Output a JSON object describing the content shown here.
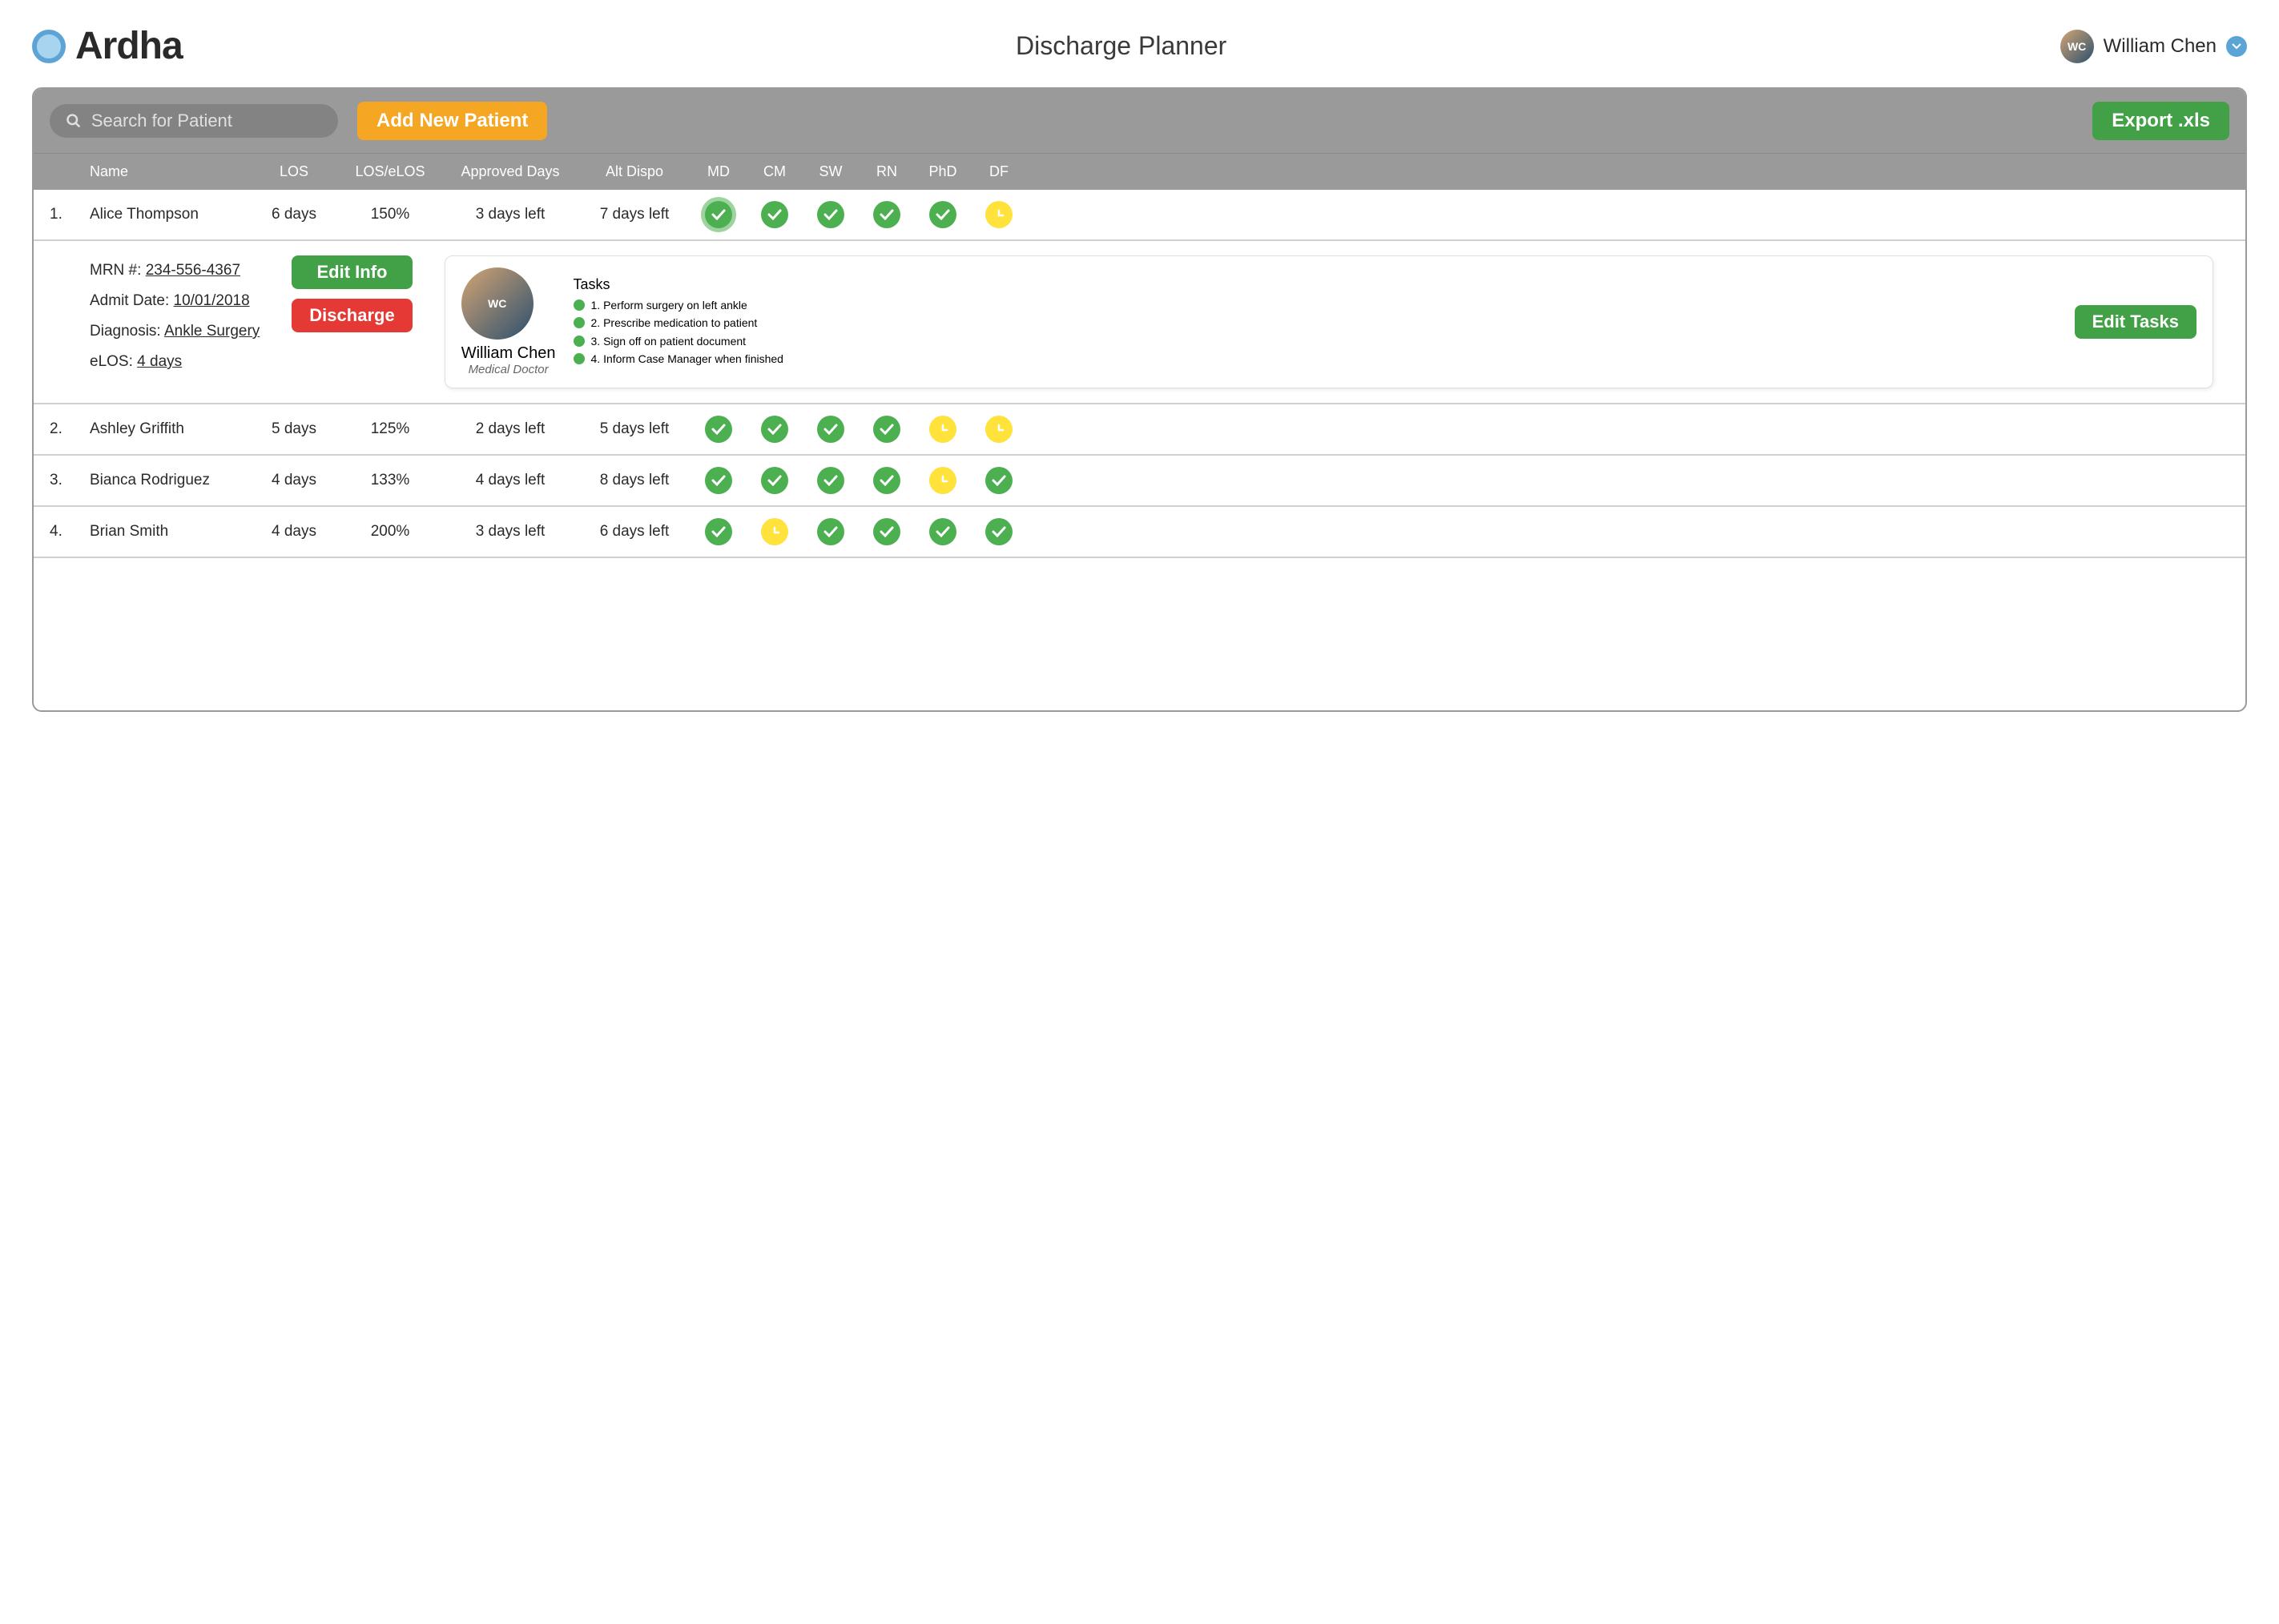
{
  "brand": {
    "name": "Ardha"
  },
  "page_title": "Discharge Planner",
  "user": {
    "name": "William Chen",
    "initials": "WC"
  },
  "toolbar": {
    "search_placeholder": "Search for Patient",
    "add_label": "Add New Patient",
    "export_label": "Export .xls"
  },
  "columns": {
    "c1": "Name",
    "c2": "LOS",
    "c3": "LOS/eLOS",
    "c4": "Approved Days",
    "c5": "Alt Dispo",
    "s0": "MD",
    "s1": "CM",
    "s2": "SW",
    "s3": "RN",
    "s4": "PhD",
    "s5": "DF"
  },
  "colors": {
    "green": "#4caf50",
    "yellow": "#ffe23b",
    "orange": "#f5a623",
    "btn_green": "#42a047",
    "red": "#e53935",
    "header_grey": "#9a9a9a",
    "accent_blue": "#5da4d6"
  },
  "patients": [
    {
      "idx": "1.",
      "name": "Alice Thompson",
      "los": "6 days",
      "ratio": "150%",
      "approved": "3 days left",
      "alt": "7 days left",
      "status": [
        "green-ring",
        "green",
        "green",
        "green",
        "green",
        "yellow"
      ],
      "expanded": true,
      "detail": {
        "mrn_label": "MRN #: ",
        "mrn": "234-556-4367",
        "admit_label": "Admit Date: ",
        "admit": "10/01/2018",
        "diag_label": "Diagnosis: ",
        "diag": "Ankle Surgery",
        "elos_label": "eLOS: ",
        "elos": "4 days",
        "edit_info_label": "Edit Info",
        "discharge_label": "Discharge",
        "doctor_name": "William Chen",
        "doctor_role": "Medical Doctor",
        "tasks_title": "Tasks",
        "tasks": [
          "1. Perform surgery on left ankle",
          "2. Prescribe medication to patient",
          "3. Sign off on patient document",
          "4. Inform Case Manager when finished"
        ],
        "edit_tasks_label": "Edit Tasks"
      }
    },
    {
      "idx": "2.",
      "name": "Ashley Griffith",
      "los": "5 days",
      "ratio": "125%",
      "approved": "2 days left",
      "alt": "5 days left",
      "status": [
        "green",
        "green",
        "green",
        "green",
        "yellow",
        "yellow"
      ]
    },
    {
      "idx": "3.",
      "name": "Bianca Rodriguez",
      "los": "4 days",
      "ratio": "133%",
      "approved": "4 days left",
      "alt": "8 days left",
      "status": [
        "green",
        "green",
        "green",
        "green",
        "yellow",
        "green"
      ]
    },
    {
      "idx": "4.",
      "name": "Brian Smith",
      "los": "4 days",
      "ratio": "200%",
      "approved": "3 days left",
      "alt": "6 days left",
      "status": [
        "green",
        "yellow",
        "green",
        "green",
        "green",
        "green"
      ]
    }
  ]
}
